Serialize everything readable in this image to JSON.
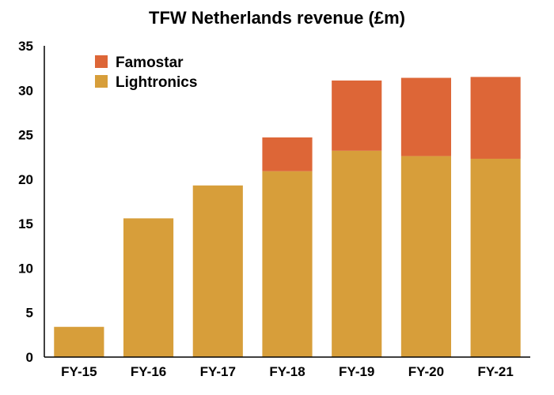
{
  "chart_data": {
    "type": "bar",
    "stacked": true,
    "title": "TFW Netherlands revenue (£m)",
    "xlabel": "",
    "ylabel": "",
    "categories": [
      "FY-15",
      "FY-16",
      "FY-17",
      "FY-18",
      "FY-19",
      "FY-20",
      "FY-21"
    ],
    "series": [
      {
        "name": "Lightronics",
        "color": "#D79E3A",
        "values": [
          3.4,
          15.6,
          19.3,
          20.9,
          23.2,
          22.6,
          22.3
        ]
      },
      {
        "name": "Famostar",
        "color": "#DD6637",
        "values": [
          0,
          0,
          0,
          3.8,
          7.9,
          8.8,
          9.2
        ]
      }
    ],
    "ylim": [
      0,
      35
    ],
    "yticks": [
      0,
      5,
      10,
      15,
      20,
      25,
      30,
      35
    ],
    "grid": false,
    "legend_position": "top-left",
    "legend_order": [
      "Famostar",
      "Lightronics"
    ]
  }
}
